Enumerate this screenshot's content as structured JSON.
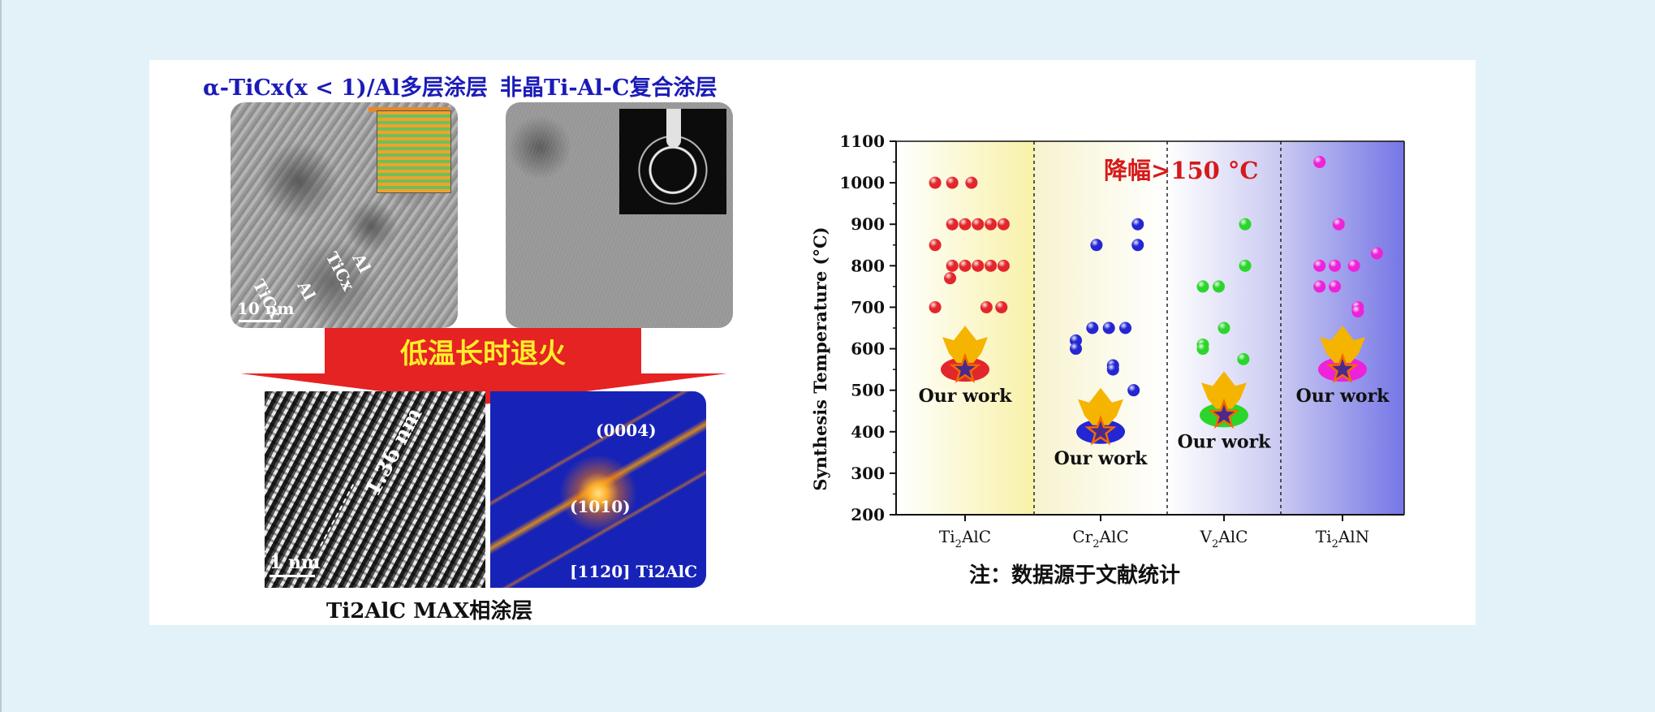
{
  "left_panel": {
    "caption_multilayer": "α-TiCx(x < 1)/Al多层涂层",
    "caption_amorphous": "非晶Ti-Al-C复合涂层",
    "labels_a": [
      "Al",
      "TiCx",
      "Al",
      "TiCx"
    ],
    "scale_a": "10 nm",
    "arrow_text": "低温长时退火",
    "lattice_spacing": "1.36 nm",
    "scale_b": "1 nm",
    "fft_spots": [
      "(0004)",
      "(1010)"
    ],
    "zone_axis": "[1120] Ti2AlC",
    "caption_max": "Ti2AlC MAX相涂层"
  },
  "chart_data": {
    "type": "scatter",
    "title": "",
    "annotation": "降幅>150 °C",
    "ylabel": "Synthesis Temperature (°C)",
    "xlabel": "",
    "ylim": [
      200,
      1100
    ],
    "yticks": [
      200,
      300,
      400,
      500,
      600,
      700,
      800,
      900,
      1000,
      1100
    ],
    "grid": false,
    "note": "注：数据源于文献统计",
    "categories": [
      "Ti2AlC",
      "Cr2AlC",
      "V2AlC",
      "Ti2AlN"
    ],
    "series": [
      {
        "category": "Ti2AlC",
        "color": "#e3262b",
        "points": [
          {
            "x": -0.7,
            "y": 1000
          },
          {
            "x": -0.3,
            "y": 1000
          },
          {
            "x": 0.15,
            "y": 1000
          },
          {
            "x": -0.3,
            "y": 900
          },
          {
            "x": 0.0,
            "y": 900
          },
          {
            "x": 0.3,
            "y": 900
          },
          {
            "x": 0.6,
            "y": 900
          },
          {
            "x": 0.9,
            "y": 900
          },
          {
            "x": -0.7,
            "y": 850
          },
          {
            "x": -0.3,
            "y": 800
          },
          {
            "x": 0.0,
            "y": 800
          },
          {
            "x": 0.3,
            "y": 800
          },
          {
            "x": 0.6,
            "y": 800
          },
          {
            "x": 0.9,
            "y": 800
          },
          {
            "x": -0.35,
            "y": 770
          },
          {
            "x": -0.7,
            "y": 700
          },
          {
            "x": 0.5,
            "y": 700
          },
          {
            "x": 0.85,
            "y": 700
          }
        ],
        "our_work": 550
      },
      {
        "category": "Cr2AlC",
        "color": "#2426d4",
        "points": [
          {
            "x": 0.9,
            "y": 900
          },
          {
            "x": 0.9,
            "y": 850
          },
          {
            "x": -0.1,
            "y": 850
          },
          {
            "x": -0.6,
            "y": 620
          },
          {
            "x": -0.6,
            "y": 600
          },
          {
            "x": -0.2,
            "y": 650
          },
          {
            "x": 0.2,
            "y": 650
          },
          {
            "x": 0.6,
            "y": 650
          },
          {
            "x": 0.3,
            "y": 560
          },
          {
            "x": 0.3,
            "y": 550
          },
          {
            "x": 0.8,
            "y": 500
          }
        ],
        "our_work": 400
      },
      {
        "category": "V2AlC",
        "color": "#2bd62b",
        "points": [
          {
            "x": 0.6,
            "y": 900
          },
          {
            "x": 0.6,
            "y": 800
          },
          {
            "x": -0.6,
            "y": 750
          },
          {
            "x": -0.15,
            "y": 750
          },
          {
            "x": 0.0,
            "y": 650
          },
          {
            "x": -0.6,
            "y": 610
          },
          {
            "x": -0.6,
            "y": 600
          },
          {
            "x": 0.55,
            "y": 575
          }
        ],
        "our_work": 440
      },
      {
        "category": "Ti2AlN",
        "color": "#ee22d8",
        "points": [
          {
            "x": -0.6,
            "y": 1050
          },
          {
            "x": -0.1,
            "y": 900
          },
          {
            "x": 0.9,
            "y": 830
          },
          {
            "x": -0.6,
            "y": 800
          },
          {
            "x": -0.2,
            "y": 800
          },
          {
            "x": 0.3,
            "y": 800
          },
          {
            "x": -0.6,
            "y": 750
          },
          {
            "x": -0.2,
            "y": 750
          },
          {
            "x": 0.4,
            "y": 700
          },
          {
            "x": 0.4,
            "y": 690
          }
        ],
        "our_work": 550
      }
    ],
    "our_work_label": "Our work",
    "colors": {
      "annotation": "#d41a1a",
      "star": "#4b2a8c",
      "burst": "#f5b400",
      "star_outline": "#f06a00"
    }
  }
}
